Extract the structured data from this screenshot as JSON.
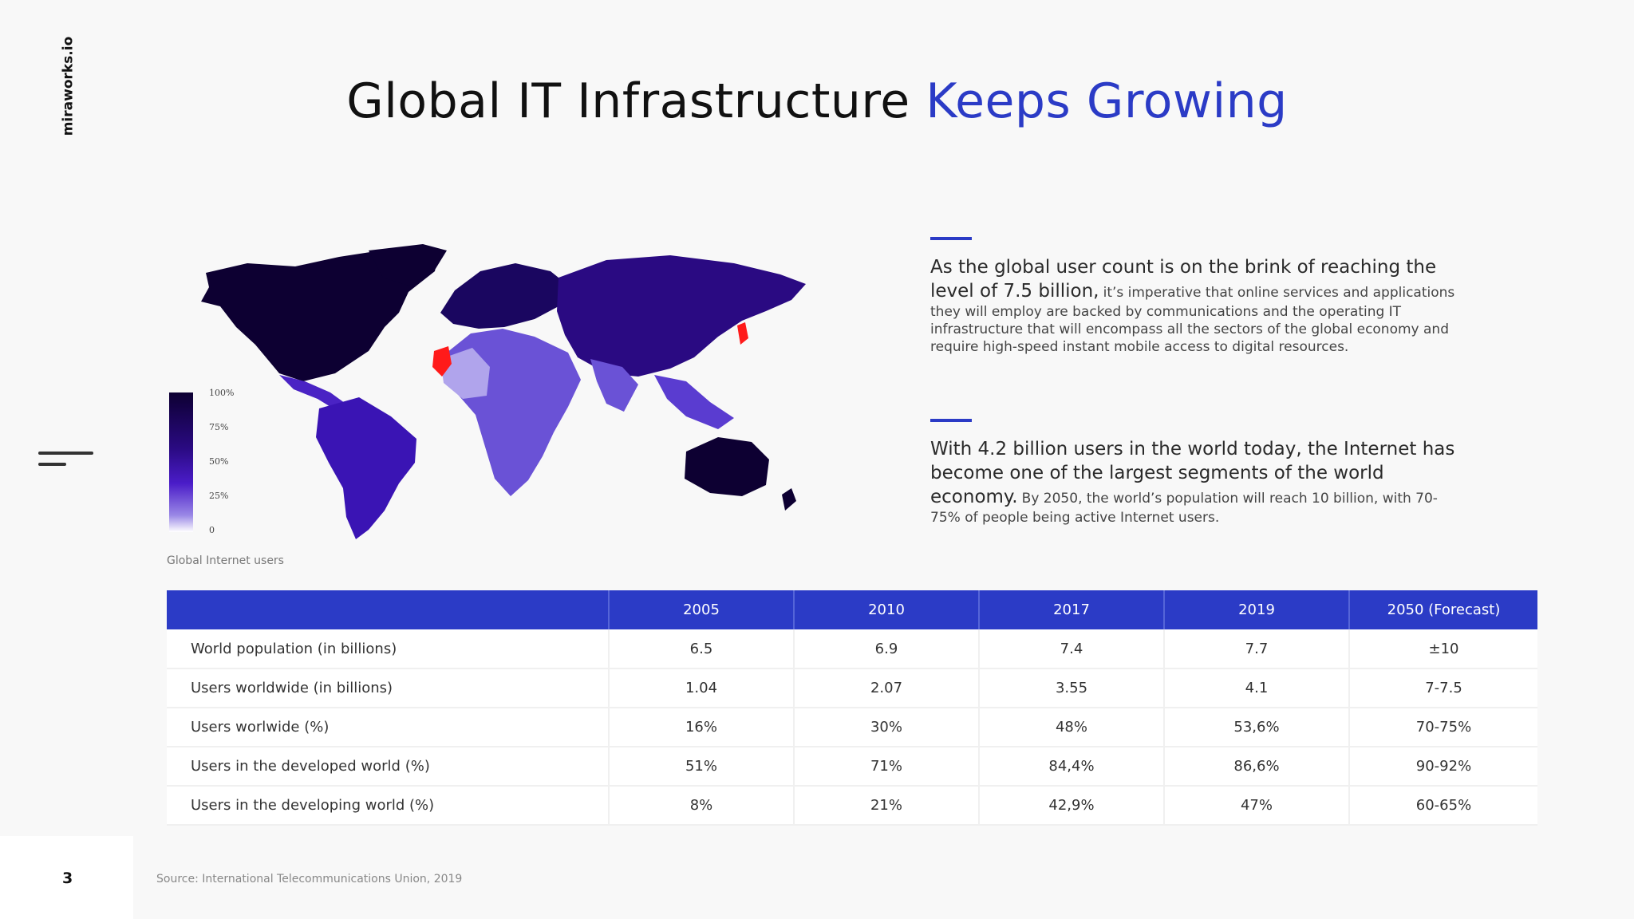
{
  "brand": "miraworks.io",
  "page_number": "3",
  "source": "Source: International Telecommunications Union, 2019",
  "title": {
    "main": "Global IT Infrastructure",
    "accent": "Keeps Growing"
  },
  "map": {
    "caption": "Global Internet users",
    "legend_ticks": [
      "100%",
      "75%",
      "50%",
      "25%",
      "0"
    ],
    "colors": {
      "darkest": "#0d0032",
      "mid": "#3a14b4",
      "light": "#a89ae8",
      "highlight": "#ff1a1a"
    }
  },
  "paragraphs": [
    {
      "lead": "As the global user count is on the brink of reaching the level of 7.5 billion,",
      "body": "it’s imperative that online services and applications they will employ are backed by communications and the operating IT infrastructure that will encompass all the sectors of the global economy and require high-speed instant mobile access to digital resources."
    },
    {
      "lead": "With 4.2 billion users in the world today, the Internet has become one of the largest segments of the world economy.",
      "body": "By 2050, the world’s population will reach 10 billion, with 70-75% of people being active Internet users."
    }
  ],
  "table": {
    "headers": [
      "",
      "2005",
      "2010",
      "2017",
      "2019",
      "2050 (Forecast)"
    ],
    "rows": [
      [
        "World population  (in billions)",
        "6.5",
        "6.9",
        "7.4",
        "7.7",
        "±10"
      ],
      [
        "Users  worldwide (in billions)",
        "1.04",
        "2.07",
        "3.55",
        "4.1",
        "7-7.5"
      ],
      [
        "Users worlwide (%)",
        "16%",
        "30%",
        "48%",
        "53,6%",
        "70-75%"
      ],
      [
        "Users in the developed world (%)",
        "51%",
        "71%",
        "84,4%",
        "86,6%",
        "90-92%"
      ],
      [
        "Users in the developing world (%)",
        "8%",
        "21%",
        "42,9%",
        "47%",
        "60-65%"
      ]
    ]
  },
  "accent_color": "#2b3bc6"
}
